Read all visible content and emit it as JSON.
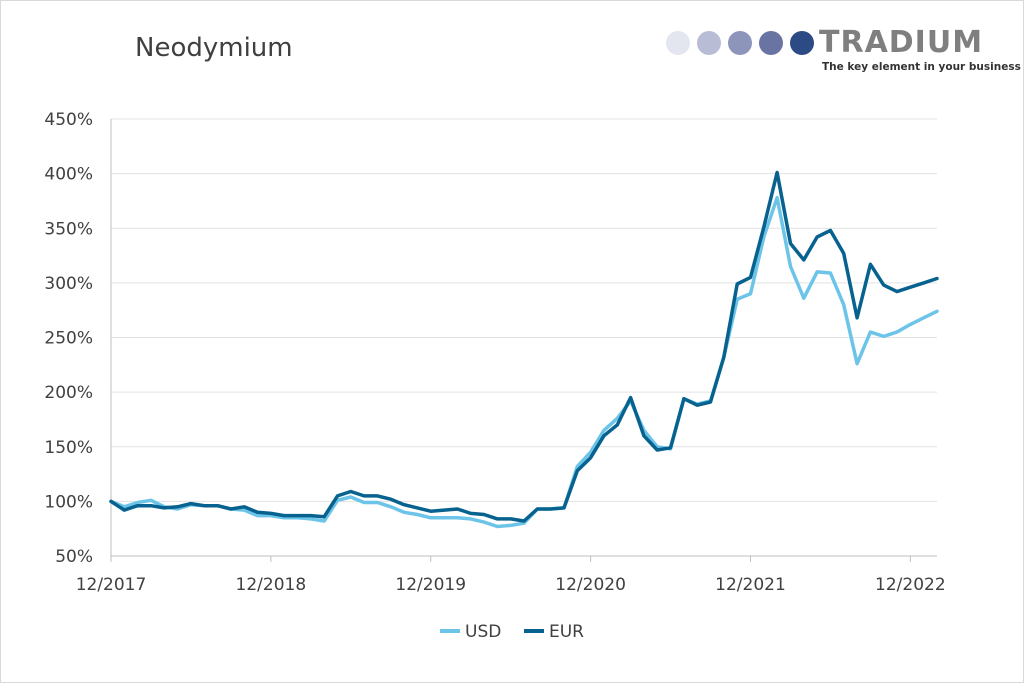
{
  "brand": {
    "name": "TRADIUM",
    "tagline": "The key element in your business",
    "dot_colors": [
      "#e3e6ee",
      "#b8bcd4",
      "#8e95bb",
      "#6a74a3",
      "#2c4a83"
    ]
  },
  "chart_data": {
    "type": "line",
    "title": "Neodymium",
    "xlabel": "",
    "ylabel": "",
    "ylim": [
      50,
      450
    ],
    "yticks": [
      50,
      100,
      150,
      200,
      250,
      300,
      350,
      400,
      450
    ],
    "ytick_labels": [
      "50%",
      "100%",
      "150%",
      "200%",
      "250%",
      "300%",
      "350%",
      "400%",
      "450%"
    ],
    "xlim": [
      0,
      62
    ],
    "xtick_positions": [
      0,
      12,
      24,
      36,
      48,
      60
    ],
    "xtick_labels": [
      "12/2017",
      "12/2018",
      "12/2019",
      "12/2020",
      "12/2021",
      "12/2022"
    ],
    "grid": true,
    "legend": "bottom-center",
    "series": [
      {
        "name": "USD",
        "color": "#6cc4e8",
        "x": [
          0,
          1,
          2,
          3,
          4,
          5,
          6,
          7,
          8,
          9,
          10,
          11,
          12,
          13,
          14,
          15,
          16,
          17,
          18,
          19,
          20,
          21,
          22,
          23,
          24,
          25,
          26,
          27,
          28,
          29,
          30,
          31,
          32,
          33,
          34,
          35,
          36,
          37,
          38,
          39,
          40,
          41,
          42,
          43,
          44,
          45,
          46,
          47,
          48,
          49,
          50,
          51,
          52,
          53,
          54,
          55,
          56,
          57,
          58,
          59,
          60,
          61,
          62
        ],
        "values": [
          100,
          95,
          99,
          101,
          95,
          93,
          97,
          96,
          96,
          93,
          92,
          87,
          87,
          85,
          85,
          84,
          82,
          101,
          104,
          99,
          99,
          95,
          90,
          88,
          85,
          85,
          85,
          84,
          81,
          77,
          78,
          80,
          93,
          93,
          94,
          132,
          145,
          165,
          176,
          192,
          165,
          150,
          148,
          194,
          189,
          192,
          232,
          285,
          290,
          342,
          378,
          315,
          286,
          310,
          309,
          280,
          226,
          255,
          251,
          255,
          262,
          268,
          274
        ]
      },
      {
        "name": "EUR",
        "color": "#08628f",
        "x": [
          0,
          1,
          2,
          3,
          4,
          5,
          6,
          7,
          8,
          9,
          10,
          11,
          12,
          13,
          14,
          15,
          16,
          17,
          18,
          19,
          20,
          21,
          22,
          23,
          24,
          25,
          26,
          27,
          28,
          29,
          30,
          31,
          32,
          33,
          34,
          35,
          36,
          37,
          38,
          39,
          40,
          41,
          42,
          43,
          44,
          45,
          46,
          47,
          48,
          49,
          50,
          51,
          52,
          53,
          54,
          55,
          56,
          57,
          58,
          59,
          60,
          61,
          62
        ],
        "values": [
          100,
          92,
          96,
          96,
          94,
          95,
          98,
          96,
          96,
          93,
          95,
          90,
          89,
          87,
          87,
          87,
          86,
          105,
          109,
          105,
          105,
          102,
          97,
          94,
          91,
          92,
          93,
          89,
          88,
          84,
          84,
          82,
          93,
          93,
          94,
          128,
          140,
          160,
          170,
          195,
          160,
          147,
          149,
          194,
          188,
          191,
          232,
          299,
          305,
          351,
          401,
          336,
          321,
          342,
          348,
          327,
          268,
          317,
          298,
          292,
          296,
          300,
          304
        ]
      }
    ]
  }
}
